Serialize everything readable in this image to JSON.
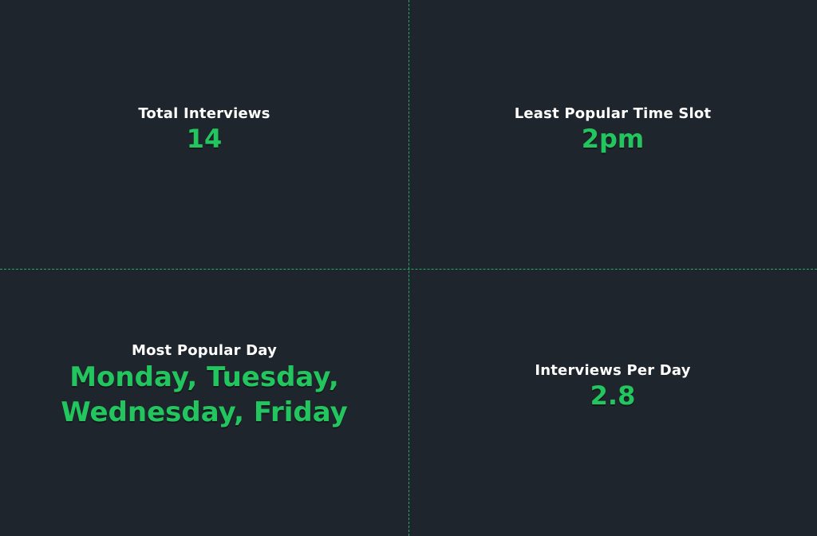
{
  "stats": {
    "total_interviews": {
      "label": "Total Interviews",
      "value": "14"
    },
    "least_popular_time_slot": {
      "label": "Least Popular Time Slot",
      "value": "2pm"
    },
    "most_popular_day": {
      "label": "Most Popular Day",
      "value": "Monday, Tuesday, Wednesday, Friday"
    },
    "interviews_per_day": {
      "label": "Interviews Per Day",
      "value": "2.8"
    }
  },
  "colors": {
    "background": "#1f252c",
    "accent": "#22c55e",
    "label": "#ffffff",
    "divider": "#2fd07a"
  }
}
